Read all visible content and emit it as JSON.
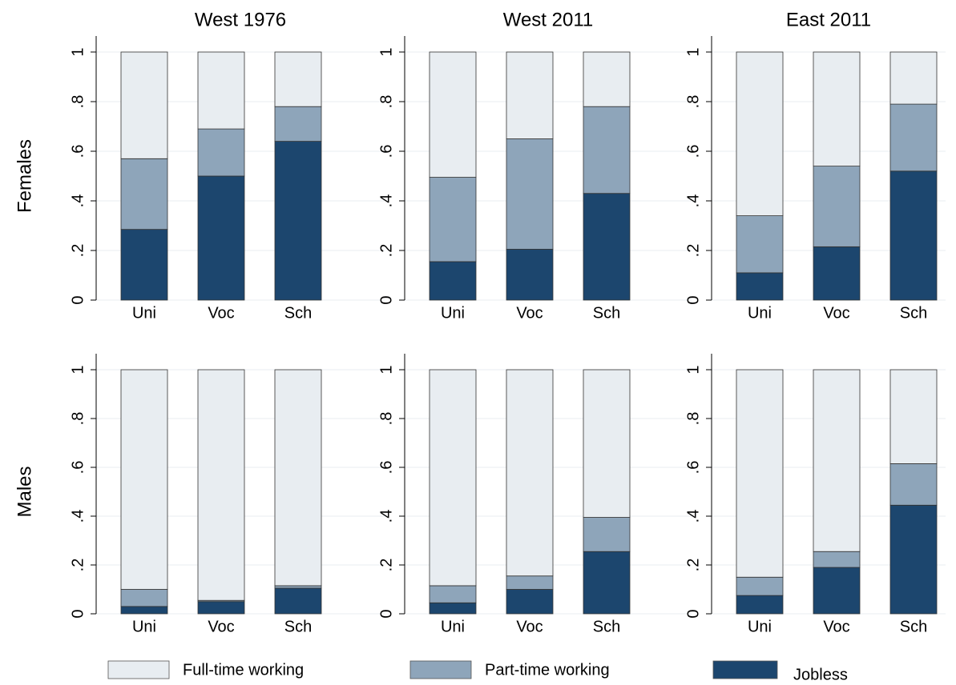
{
  "legend": [
    {
      "name": "Full-time working",
      "color": "#e8edf1"
    },
    {
      "name": "Part-time working",
      "color": "#8ea5ba"
    },
    {
      "name": "Jobless",
      "color": "#1c466e"
    }
  ],
  "chart_data": [
    {
      "type": "bar",
      "stacked": true,
      "title": "West 1976",
      "ylabel": "Females",
      "categories": [
        "Uni",
        "Voc",
        "Sch"
      ],
      "series": [
        {
          "values": [
            0.43,
            0.31,
            0.22
          ]
        },
        {
          "values": [
            0.285,
            0.19,
            0.14
          ]
        },
        {
          "values": [
            0.285,
            0.5,
            0.64
          ]
        }
      ],
      "ylim": [
        0,
        1
      ],
      "yticks": [
        0,
        {
          "value": 0.2,
          "label": ".2"
        },
        {
          "value": 0.4,
          "label": ".4"
        },
        {
          "value": 0.6,
          "label": ".6"
        },
        {
          "value": 0.8,
          "label": ".8"
        },
        1
      ],
      "grid": true
    },
    {
      "type": "bar",
      "stacked": true,
      "title": "West 2011",
      "categories": [
        "Uni",
        "Voc",
        "Sch"
      ],
      "series": [
        {
          "values": [
            0.505,
            0.35,
            0.22
          ]
        },
        {
          "values": [
            0.34,
            0.445,
            0.35
          ]
        },
        {
          "values": [
            0.155,
            0.205,
            0.43
          ]
        }
      ],
      "ylim": [
        0,
        1
      ],
      "yticks": [
        0,
        {
          "value": 0.2,
          "label": ".2"
        },
        {
          "value": 0.4,
          "label": ".4"
        },
        {
          "value": 0.6,
          "label": ".6"
        },
        {
          "value": 0.8,
          "label": ".8"
        },
        1
      ],
      "grid": true
    },
    {
      "type": "bar",
      "stacked": true,
      "title": "East 2011",
      "categories": [
        "Uni",
        "Voc",
        "Sch"
      ],
      "series": [
        {
          "values": [
            0.66,
            0.46,
            0.21
          ]
        },
        {
          "values": [
            0.23,
            0.325,
            0.27
          ]
        },
        {
          "values": [
            0.11,
            0.215,
            0.52
          ]
        }
      ],
      "ylim": [
        0,
        1
      ],
      "yticks": [
        0,
        {
          "value": 0.2,
          "label": ".2"
        },
        {
          "value": 0.4,
          "label": ".4"
        },
        {
          "value": 0.6,
          "label": ".6"
        },
        {
          "value": 0.8,
          "label": ".8"
        },
        1
      ],
      "grid": true
    },
    {
      "type": "bar",
      "stacked": true,
      "ylabel": "Males",
      "categories": [
        "Uni",
        "Voc",
        "Sch"
      ],
      "series": [
        {
          "values": [
            0.9,
            0.945,
            0.885
          ]
        },
        {
          "values": [
            0.07,
            0.005,
            0.01
          ]
        },
        {
          "values": [
            0.03,
            0.05,
            0.105
          ]
        }
      ],
      "ylim": [
        0,
        1
      ],
      "yticks": [
        0,
        {
          "value": 0.2,
          "label": ".2"
        },
        {
          "value": 0.4,
          "label": ".4"
        },
        {
          "value": 0.6,
          "label": ".6"
        },
        {
          "value": 0.8,
          "label": ".8"
        },
        1
      ],
      "grid": true
    },
    {
      "type": "bar",
      "stacked": true,
      "categories": [
        "Uni",
        "Voc",
        "Sch"
      ],
      "series": [
        {
          "values": [
            0.885,
            0.845,
            0.605
          ]
        },
        {
          "values": [
            0.07,
            0.055,
            0.14
          ]
        },
        {
          "values": [
            0.045,
            0.1,
            0.255
          ]
        }
      ],
      "ylim": [
        0,
        1
      ],
      "yticks": [
        0,
        {
          "value": 0.2,
          "label": ".2"
        },
        {
          "value": 0.4,
          "label": ".4"
        },
        {
          "value": 0.6,
          "label": ".6"
        },
        {
          "value": 0.8,
          "label": ".8"
        },
        1
      ],
      "grid": true
    },
    {
      "type": "bar",
      "stacked": true,
      "categories": [
        "Uni",
        "Voc",
        "Sch"
      ],
      "series": [
        {
          "values": [
            0.85,
            0.745,
            0.385
          ]
        },
        {
          "values": [
            0.075,
            0.065,
            0.17
          ]
        },
        {
          "values": [
            0.075,
            0.19,
            0.445
          ]
        }
      ],
      "ylim": [
        0,
        1
      ],
      "yticks": [
        0,
        {
          "value": 0.2,
          "label": ".2"
        },
        {
          "value": 0.4,
          "label": ".4"
        },
        {
          "value": 0.6,
          "label": ".6"
        },
        {
          "value": 0.8,
          "label": ".8"
        },
        1
      ],
      "grid": true
    }
  ]
}
